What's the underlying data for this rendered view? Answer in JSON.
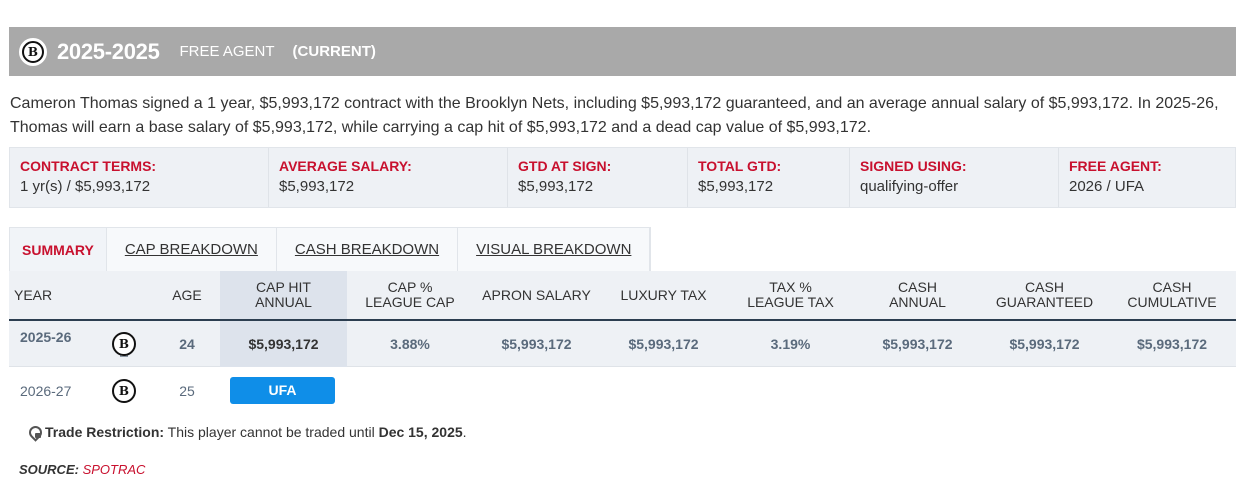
{
  "header": {
    "years": "2025-2025",
    "status": "FREE AGENT",
    "current": "(CURRENT)",
    "logo_letter": "B"
  },
  "summary_text": "Cameron Thomas signed a 1 year, $5,993,172 contract with the Brooklyn Nets, including $5,993,172 guaranteed, and an average annual salary of $5,993,172. In 2025-26, Thomas will earn a base salary of $5,993,172, while carrying a cap hit of $5,993,172 and a dead cap value of $5,993,172.",
  "terms": [
    {
      "label": "CONTRACT TERMS:",
      "value": "1 yr(s) / $5,993,172"
    },
    {
      "label": "AVERAGE SALARY:",
      "value": "$5,993,172"
    },
    {
      "label": "GTD AT SIGN:",
      "value": "$5,993,172"
    },
    {
      "label": "TOTAL GTD:",
      "value": "$5,993,172"
    },
    {
      "label": "SIGNED USING:",
      "value": "qualifying-offer"
    },
    {
      "label": "FREE AGENT:",
      "value": "2026 / UFA"
    }
  ],
  "tabs": [
    {
      "label": "SUMMARY",
      "active": true
    },
    {
      "label": "CAP BREAKDOWN"
    },
    {
      "label": "CASH BREAKDOWN"
    },
    {
      "label": "VISUAL BREAKDOWN"
    }
  ],
  "columns": {
    "year": "YEAR",
    "age": "AGE",
    "cap_hit_1": "CAP HIT",
    "cap_hit_2": "ANNUAL",
    "cap_pct_1": "CAP %",
    "cap_pct_2": "LEAGUE CAP",
    "apron": "APRON SALARY",
    "luxury": "LUXURY TAX",
    "tax_pct_1": "TAX %",
    "tax_pct_2": "LEAGUE TAX",
    "cash_1": "CASH",
    "cash_2": "ANNUAL",
    "cash_gtd_1": "CASH",
    "cash_gtd_2": "GUARANTEED",
    "cash_cum_1": "CASH",
    "cash_cum_2": "CUMULATIVE"
  },
  "rows": [
    {
      "year": "2025-26",
      "age": "24",
      "cap_hit": "$5,993,172",
      "cap_pct": "3.88%",
      "apron": "$5,993,172",
      "luxury": "$5,993,172",
      "tax_pct": "3.19%",
      "cash": "$5,993,172",
      "cash_gtd": "$5,993,172",
      "cash_cum": "$5,993,172"
    },
    {
      "year": "2026-27",
      "age": "25",
      "status": "UFA"
    }
  ],
  "restriction": {
    "label": "Trade Restriction:",
    "text": " This player cannot be traded until ",
    "date": "Dec 15, 2025",
    "end": "."
  },
  "source": {
    "label": "SOURCE: ",
    "name": "SPOTRAC"
  },
  "colors": {
    "header_bg": "#a9a9a9",
    "accent_red": "#c8102e",
    "ufa_blue": "#0f8ee8"
  }
}
